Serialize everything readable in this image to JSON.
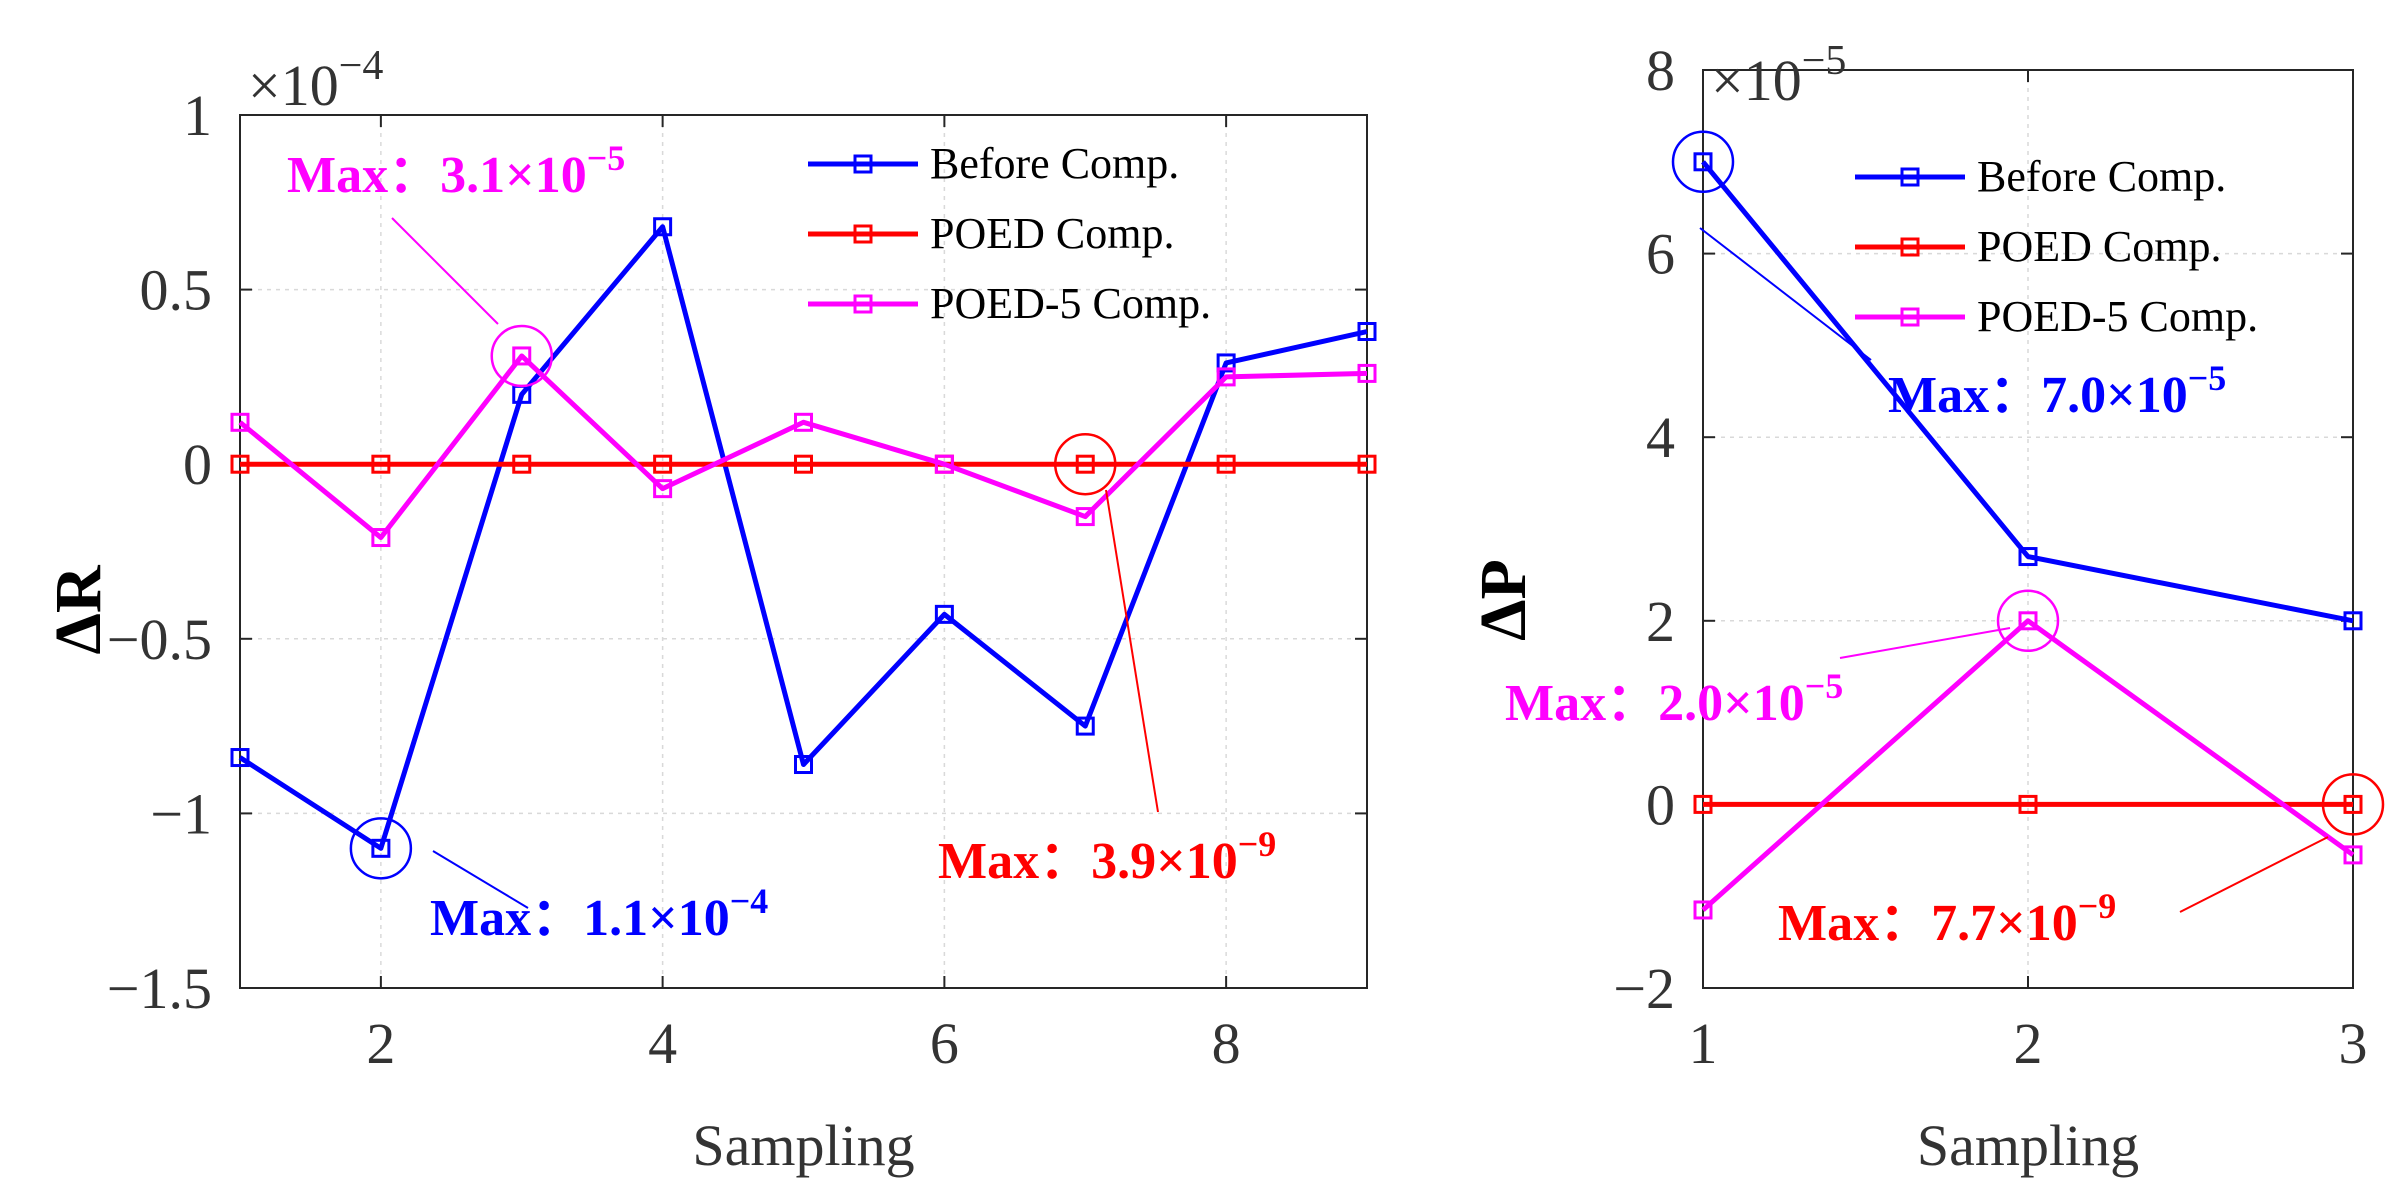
{
  "chart_data": [
    {
      "type": "line",
      "title": "",
      "xlabel": "Sampling",
      "ylabel": "ΔR",
      "exponent": {
        "base": "×10",
        "power": "−4"
      },
      "xlim": [
        1,
        9
      ],
      "ylim": [
        -1.5,
        1
      ],
      "xticks": [
        2,
        4,
        6,
        8
      ],
      "xtick_labels": [
        "2",
        "4",
        "6",
        "8"
      ],
      "yticks": [
        -1.5,
        -1,
        -0.5,
        0,
        0.5,
        1
      ],
      "ytick_labels": [
        "−1.5",
        "−1",
        "−0.5",
        "0",
        "0.5",
        "1"
      ],
      "grid": true,
      "legend": "top-right",
      "x": [
        1,
        2,
        3,
        4,
        5,
        6,
        7,
        8,
        9
      ],
      "series": [
        {
          "name": "Before Comp.",
          "color": "#0000ff",
          "values": [
            -0.84,
            -1.1,
            0.2,
            0.68,
            -0.86,
            -0.43,
            -0.75,
            0.29,
            0.38
          ]
        },
        {
          "name": "POED Comp.",
          "color": "#ff0000",
          "values": [
            0,
            0,
            0,
            0,
            0,
            0,
            0,
            0,
            0
          ]
        },
        {
          "name": "POED-5 Comp.",
          "color": "#ff00ff",
          "values": [
            0.12,
            -0.21,
            0.31,
            -0.07,
            0.12,
            0,
            -0.15,
            0.25,
            0.26
          ]
        }
      ],
      "annotations": [
        {
          "prefix": "Max：",
          "mantissa": "3.1×10",
          "exp": "−5",
          "color": "#ff00ff"
        },
        {
          "prefix": "Max：",
          "mantissa": "1.1×10",
          "exp": "−4",
          "color": "#0000ff"
        },
        {
          "prefix": "Max：",
          "mantissa": "3.9×10",
          "exp": "−9",
          "color": "#ff0000"
        }
      ]
    },
    {
      "type": "line",
      "title": "",
      "xlabel": "Sampling",
      "ylabel": "ΔP",
      "exponent": {
        "base": "×10",
        "power": "−5"
      },
      "xlim": [
        1,
        3
      ],
      "ylim": [
        -2,
        8
      ],
      "xticks": [
        1,
        2,
        3
      ],
      "xtick_labels": [
        "1",
        "2",
        "3"
      ],
      "yticks": [
        -2,
        0,
        2,
        4,
        6,
        8
      ],
      "ytick_labels": [
        "−2",
        "0",
        "2",
        "4",
        "6",
        "8"
      ],
      "grid": true,
      "legend": "top-right",
      "x": [
        1,
        2,
        3
      ],
      "series": [
        {
          "name": "Before Comp.",
          "color": "#0000ff",
          "values": [
            7.0,
            2.7,
            2.0
          ]
        },
        {
          "name": "POED Comp.",
          "color": "#ff0000",
          "values": [
            0,
            0,
            0
          ]
        },
        {
          "name": "POED-5 Comp.",
          "color": "#ff00ff",
          "values": [
            -1.15,
            2.0,
            -0.55
          ]
        }
      ],
      "annotations": [
        {
          "prefix": "Max：",
          "mantissa": "7.0×10",
          "exp": "−5",
          "color": "#0000ff"
        },
        {
          "prefix": "Max：",
          "mantissa": "2.0×10",
          "exp": "−5",
          "color": "#ff00ff"
        },
        {
          "prefix": "Max：",
          "mantissa": "7.7×10",
          "exp": "−9",
          "color": "#ff0000"
        }
      ]
    }
  ]
}
